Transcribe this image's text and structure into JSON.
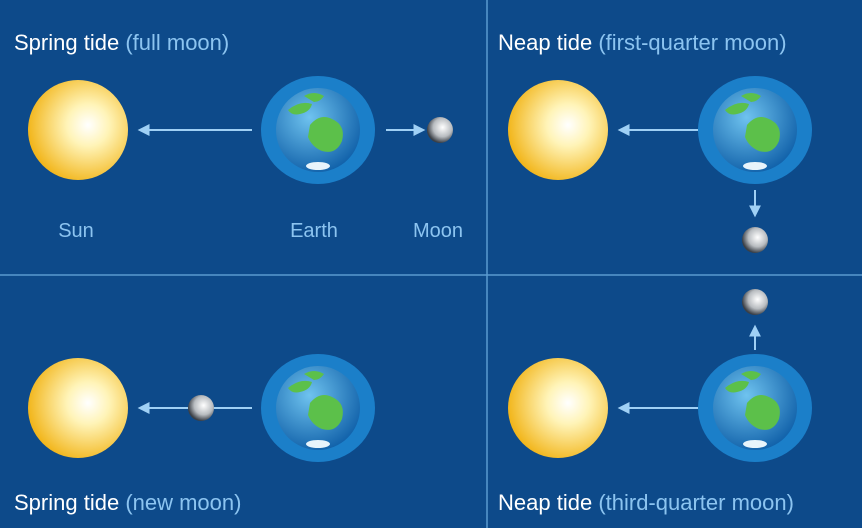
{
  "panels": [
    {
      "title": "Spring tide",
      "subtitle": "(full moon)",
      "labels": [
        "Sun",
        "Earth",
        "Moon"
      ]
    },
    {
      "title": "Neap tide",
      "subtitle": "(first-quarter moon)"
    },
    {
      "title": "Spring tide",
      "subtitle": "(new moon)"
    },
    {
      "title": "Neap tide",
      "subtitle": "(third-quarter moon)"
    }
  ]
}
